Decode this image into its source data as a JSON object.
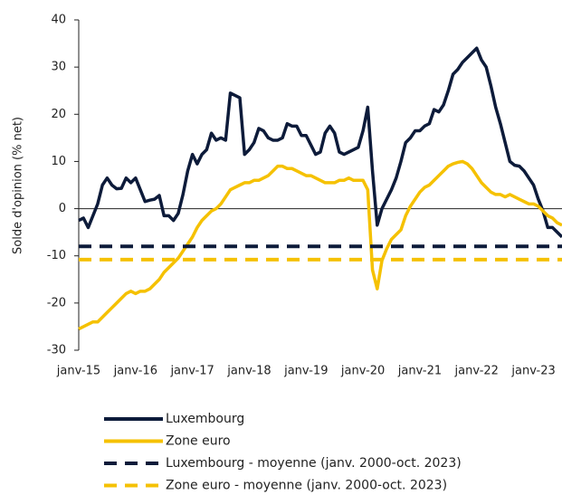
{
  "chart_data": {
    "type": "line",
    "y_label": "Solde d'opinion (% net)",
    "categories": [
      "janv-15",
      null,
      null,
      null,
      null,
      null,
      null,
      null,
      null,
      null,
      null,
      null,
      "janv-16",
      null,
      null,
      null,
      null,
      null,
      null,
      null,
      null,
      null,
      null,
      null,
      "janv-17",
      null,
      null,
      null,
      null,
      null,
      null,
      null,
      null,
      null,
      null,
      null,
      "janv-18",
      null,
      null,
      null,
      null,
      null,
      null,
      null,
      null,
      null,
      null,
      null,
      "janv-19",
      null,
      null,
      null,
      null,
      null,
      null,
      null,
      null,
      null,
      null,
      null,
      "janv-20",
      null,
      null,
      null,
      null,
      null,
      null,
      null,
      null,
      null,
      null,
      null,
      "janv-21",
      null,
      null,
      null,
      null,
      null,
      null,
      null,
      null,
      null,
      null,
      null,
      "janv-22",
      null,
      null,
      null,
      null,
      null,
      null,
      null,
      null,
      null,
      null,
      null,
      "janv-23",
      null,
      null,
      null,
      null,
      null,
      null
    ],
    "ylim": [
      -30,
      40
    ],
    "yticks": [
      -30,
      -20,
      -10,
      0,
      10,
      20,
      30,
      40
    ],
    "series": [
      {
        "name": "Luxembourg",
        "color": "#0d1b3a",
        "values": [
          -2.5,
          -2,
          -4,
          -1.5,
          1,
          5,
          6.5,
          5,
          4.2,
          4.3,
          6.5,
          5.5,
          6.5,
          4,
          1.5,
          1.8,
          2,
          2.8,
          -1.5,
          -1.5,
          -2.5,
          -1,
          3,
          8,
          11.5,
          9.5,
          11.5,
          12.5,
          16,
          14.5,
          15,
          14.5,
          24.5,
          24,
          23.5,
          11.5,
          12.5,
          14,
          17,
          16.5,
          15,
          14.5,
          14.5,
          15,
          18,
          17.5,
          17.5,
          15.5,
          15.5,
          13.5,
          11.5,
          12,
          16,
          17.5,
          16,
          12,
          11.5,
          12,
          12.5,
          13,
          16.5,
          21.5,
          8,
          -3.5,
          0,
          2,
          4,
          6.5,
          10,
          14,
          15,
          16.5,
          16.5,
          17.5,
          18,
          21,
          20.5,
          22,
          25,
          28.5,
          29.5,
          31,
          32,
          33,
          34,
          31.5,
          30,
          26,
          21.5,
          18,
          14,
          10,
          9.2,
          9,
          8,
          6.5,
          5,
          2,
          -0.5,
          -4,
          -4,
          -5,
          -6
        ]
      },
      {
        "name": "Zone euro",
        "color": "#f5c100",
        "values": [
          -25.5,
          -25,
          -24.5,
          -24,
          -24,
          -23,
          -22,
          -21,
          -20,
          -19,
          -18,
          -17.5,
          -18,
          -17.5,
          -17.5,
          -17,
          -16,
          -15,
          -13.5,
          -12.5,
          -11.5,
          -10.5,
          -9,
          -7.5,
          -6,
          -4,
          -2.5,
          -1.5,
          -0.5,
          0,
          1,
          2.5,
          4,
          4.5,
          5,
          5.5,
          5.5,
          6,
          6,
          6.5,
          7,
          8,
          9,
          9,
          8.5,
          8.5,
          8,
          7.5,
          7,
          7,
          6.5,
          6,
          5.5,
          5.5,
          5.5,
          6,
          6,
          6.5,
          6,
          6,
          6,
          4,
          -13,
          -17,
          -11,
          -8.5,
          -6.5,
          -5.5,
          -4.5,
          -1.5,
          0.5,
          2,
          3.5,
          4.5,
          5,
          6,
          7,
          8,
          9,
          9.5,
          9.8,
          10,
          9.5,
          8.5,
          7,
          5.5,
          4.5,
          3.5,
          3,
          3,
          2.5,
          3,
          2.5,
          2,
          1.5,
          1,
          1,
          0.5,
          -0.5,
          -1.5,
          -2,
          -3,
          -3.5
        ]
      },
      {
        "name": "Luxembourg - moyenne (janv. 2000-oct. 2023)",
        "color": "#0d1b3a",
        "dashed": true,
        "value": -8
      },
      {
        "name": "Zone euro - moyenne (janv. 2000-oct. 2023)",
        "color": "#f5c100",
        "dashed": true,
        "value": -10.8
      }
    ]
  }
}
